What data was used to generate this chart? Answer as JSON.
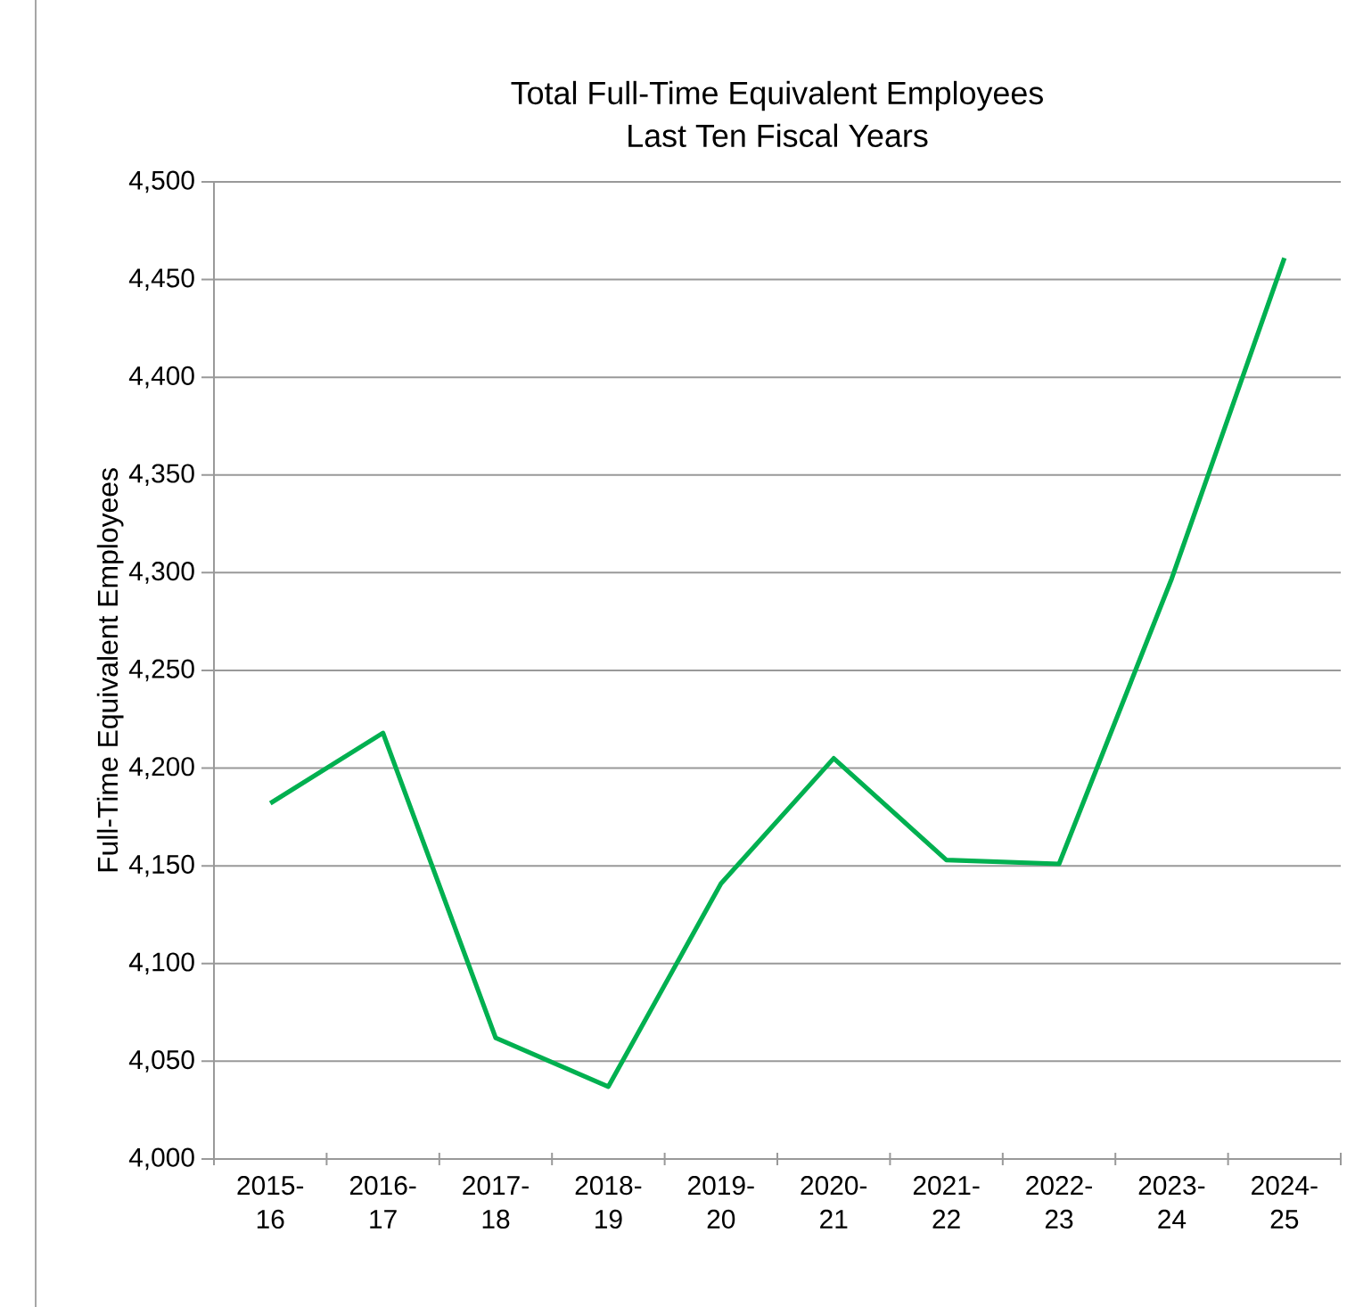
{
  "chart_data": {
    "type": "line",
    "title": "Total Full-Time Equivalent Employees\nLast Ten Fiscal Years",
    "ylabel": "Full-Time Equivalent Employees",
    "categories": [
      "2015-16",
      "2016-17",
      "2017-18",
      "2018-19",
      "2019-20",
      "2020-21",
      "2021-22",
      "2022-23",
      "2023-24",
      "2024-25"
    ],
    "series": [
      {
        "color": "#00b050",
        "values": [
          4182,
          4218,
          4062,
          4037,
          4141,
          4205,
          4153,
          4151,
          4297,
          4461
        ]
      }
    ],
    "ylim": [
      4000,
      4500
    ],
    "yticks": [
      {
        "value": 4000,
        "label": "4,000"
      },
      {
        "value": 4050,
        "label": "4,050"
      },
      {
        "value": 4100,
        "label": "4,100"
      },
      {
        "value": 4150,
        "label": "4,150"
      },
      {
        "value": 4200,
        "label": "4,200"
      },
      {
        "value": 4250,
        "label": "4,250"
      },
      {
        "value": 4300,
        "label": "4,300"
      },
      {
        "value": 4350,
        "label": "4,350"
      },
      {
        "value": 4400,
        "label": "4,400"
      },
      {
        "value": 4450,
        "label": "4,450"
      },
      {
        "value": 4500,
        "label": "4,500"
      }
    ],
    "grid": "y",
    "marker": "none",
    "line_style": "solid"
  }
}
